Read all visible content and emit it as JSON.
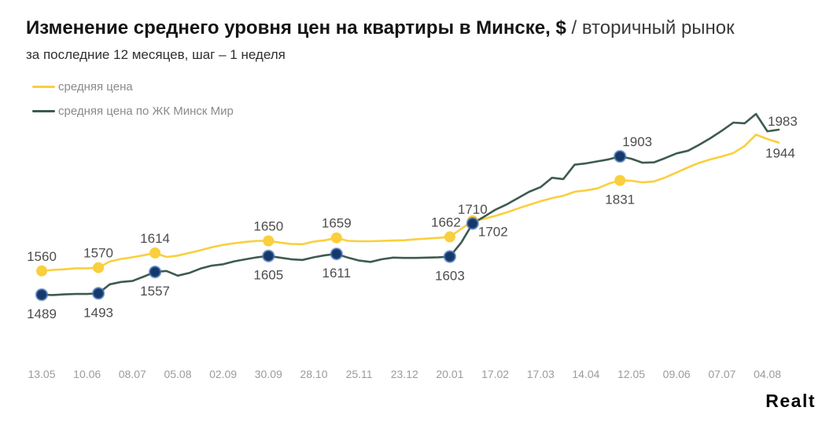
{
  "header": {
    "title_main": "Изменение среднего уровня цен на квартиры в Минске, $",
    "title_suffix": " / вторичный рынок",
    "subtitle": "за последние 12 месяцев, шаг – 1 неделя"
  },
  "legend": {
    "items": [
      {
        "label": "средняя цена",
        "color": "#FACF3D"
      },
      {
        "label": "средняя цена по ЖК Минск Мир",
        "color": "#3D5B4F"
      }
    ]
  },
  "footer": {
    "logo_text": "Realt"
  },
  "chart_data": {
    "type": "line",
    "title": "Изменение среднего уровня цен на квартиры в Минске, $ / вторичный рынок",
    "subtitle": "за последние 12 месяцев, шаг – 1 неделя",
    "xlabel": "",
    "ylabel": "",
    "grid": false,
    "legend_position": "top-left",
    "x_unit": "weeks",
    "x_tick_labels": [
      "13.05",
      "10.06",
      "08.07",
      "05.08",
      "02.09",
      "30.09",
      "28.10",
      "25.11",
      "23.12",
      "20.01",
      "17.02",
      "17.03",
      "14.04",
      "12.05",
      "09.06",
      "07.07",
      "04.08"
    ],
    "x_tick_weeks": [
      0,
      4,
      8,
      12,
      16,
      20,
      24,
      28,
      32,
      36,
      40,
      44,
      48,
      52,
      56,
      60,
      64
    ],
    "ylim": [
      1440,
      2060
    ],
    "series": [
      {
        "name": "средняя цена",
        "color": "#FACF3D",
        "marker_color": "#FACF3D",
        "values": [
          1560,
          1563,
          1565,
          1568,
          1568,
          1570,
          1588,
          1596,
          1601,
          1607,
          1614,
          1602,
          1606,
          1614,
          1622,
          1631,
          1638,
          1643,
          1647,
          1650,
          1650,
          1645,
          1641,
          1640,
          1648,
          1652,
          1659,
          1650,
          1649,
          1649,
          1650,
          1651,
          1652,
          1655,
          1657,
          1659,
          1662,
          1686,
          1710,
          1716,
          1725,
          1735,
          1747,
          1758,
          1769,
          1778,
          1785,
          1797,
          1801,
          1807,
          1821,
          1831,
          1830,
          1825,
          1828,
          1840,
          1855,
          1870,
          1884,
          1894,
          1903,
          1913,
          1934,
          1968,
          1955,
          1944
        ],
        "labeled_points": [
          {
            "week": 0,
            "value": 1560,
            "pos": "above"
          },
          {
            "week": 5,
            "value": 1570,
            "pos": "above"
          },
          {
            "week": 10,
            "value": 1614,
            "pos": "above"
          },
          {
            "week": 20,
            "value": 1650,
            "pos": "above"
          },
          {
            "week": 26,
            "value": 1659,
            "pos": "above"
          },
          {
            "week": 36,
            "value": 1662,
            "pos": "above",
            "dx": -5
          },
          {
            "week": 38,
            "value": 1710,
            "pos": "above",
            "dy": 4
          },
          {
            "week": 51,
            "value": 1831,
            "pos": "below"
          },
          {
            "week": 65,
            "value": 1944,
            "pos": "end",
            "dx": -17,
            "dy": 19,
            "no_dot": true
          }
        ]
      },
      {
        "name": "средняя цена по ЖК Минск Мир",
        "color": "#3D5B4F",
        "marker_color": "#17386B",
        "marker_ring": "rgba(77,125,190,0.6)",
        "values": [
          1489,
          1488,
          1490,
          1491,
          1491,
          1493,
          1520,
          1527,
          1530,
          1543,
          1557,
          1560,
          1546,
          1554,
          1567,
          1576,
          1580,
          1589,
          1595,
          1601,
          1605,
          1600,
          1595,
          1593,
          1601,
          1607,
          1611,
          1600,
          1591,
          1587,
          1595,
          1600,
          1599,
          1599,
          1600,
          1601,
          1603,
          1645,
          1702,
          1722,
          1743,
          1759,
          1778,
          1797,
          1811,
          1839,
          1835,
          1878,
          1882,
          1888,
          1894,
          1903,
          1896,
          1884,
          1885,
          1898,
          1912,
          1920,
          1938,
          1958,
          1980,
          2004,
          2002,
          2030,
          1978,
          1983
        ],
        "labeled_points": [
          {
            "week": 0,
            "value": 1489,
            "pos": "below"
          },
          {
            "week": 5,
            "value": 1493,
            "pos": "below"
          },
          {
            "week": 10,
            "value": 1557,
            "pos": "below"
          },
          {
            "week": 20,
            "value": 1605,
            "pos": "below"
          },
          {
            "week": 26,
            "value": 1611,
            "pos": "below"
          },
          {
            "week": 36,
            "value": 1603,
            "pos": "below"
          },
          {
            "week": 38,
            "value": 1702,
            "pos": "below",
            "dx": 26,
            "dy": -14
          },
          {
            "week": 51,
            "value": 1903,
            "pos": "above",
            "dx": 22
          },
          {
            "week": 65,
            "value": 1983,
            "pos": "end",
            "dx": -14,
            "dy": -5,
            "no_dot": true
          }
        ]
      }
    ]
  }
}
